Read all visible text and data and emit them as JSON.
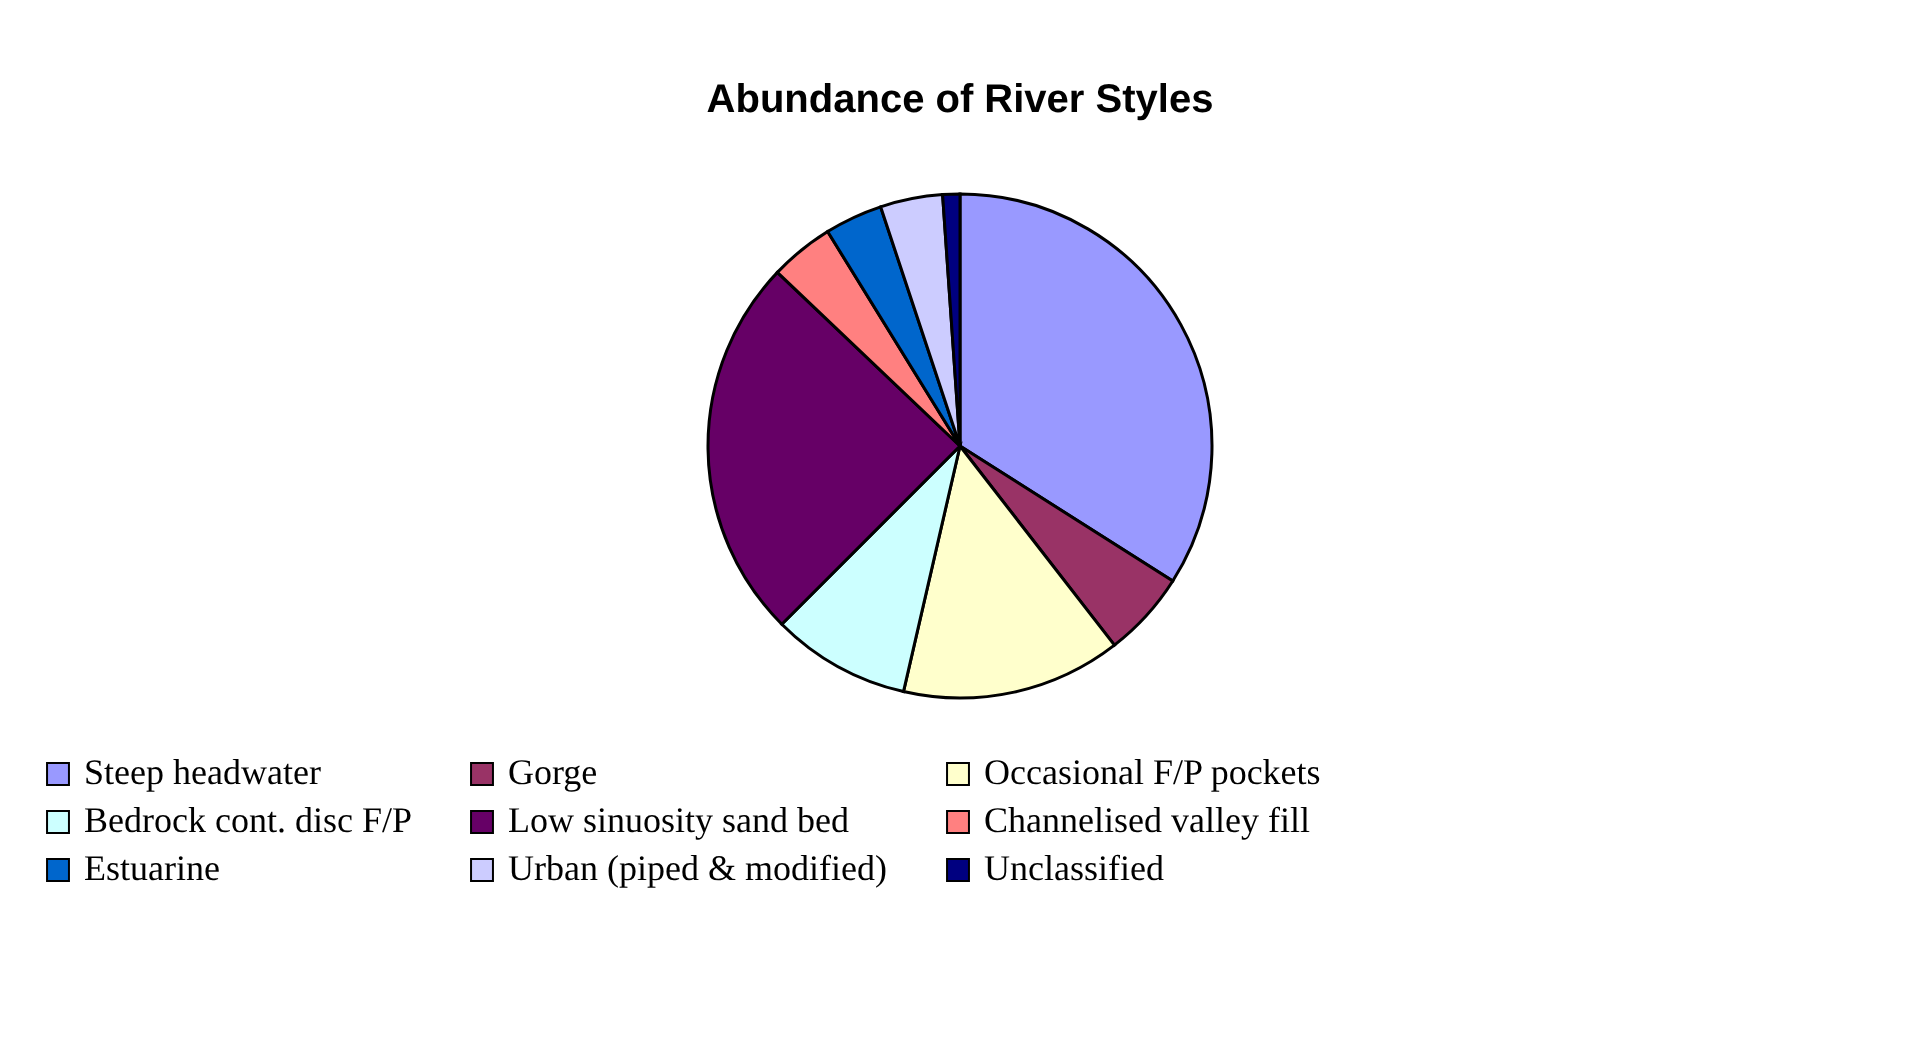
{
  "chart_data": {
    "type": "pie",
    "title": "Abundance of River Styles",
    "categories": [
      "Steep headwater",
      "Gorge",
      "Occasional F/P pockets",
      "Bedrock cont. disc F/P",
      "Low sinuosity sand bed",
      "Channelised valley fill",
      "Estuarine",
      "Urban (piped & modified)",
      "Unclassified"
    ],
    "values": [
      34.0,
      5.5,
      14.1,
      8.9,
      24.6,
      4.1,
      3.7,
      4.0,
      1.1
    ],
    "colors": [
      "#9999ff",
      "#993366",
      "#ffffcc",
      "#ccffff",
      "#660066",
      "#ff8080",
      "#0066cc",
      "#ccccff",
      "#000080"
    ],
    "legend": "bottom"
  }
}
